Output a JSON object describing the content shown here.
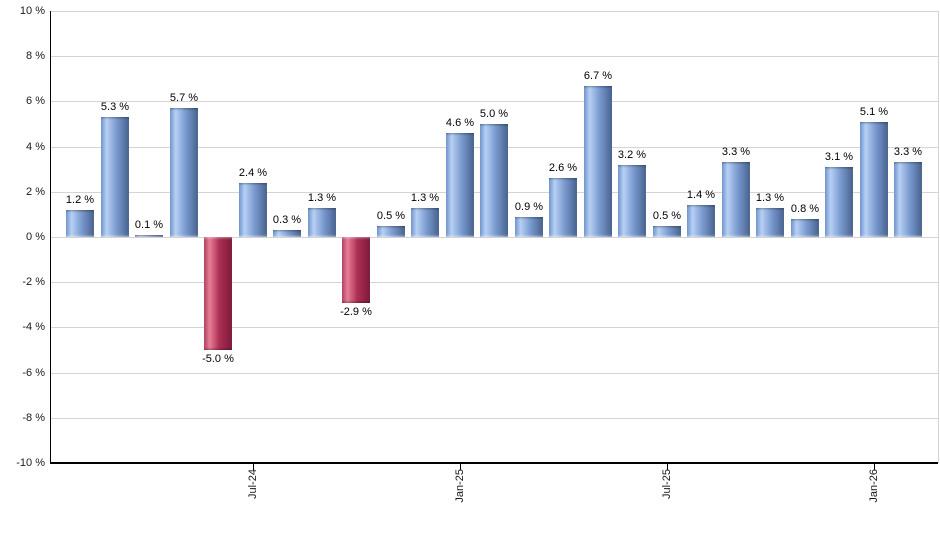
{
  "chart_data": {
    "type": "bar",
    "title": "",
    "xlabel": "",
    "ylabel": "",
    "values": [
      1.2,
      5.3,
      0.1,
      5.7,
      -5.0,
      2.4,
      0.3,
      1.3,
      -2.9,
      0.5,
      1.3,
      4.6,
      5.0,
      0.9,
      2.6,
      6.7,
      3.2,
      0.5,
      1.4,
      3.3,
      1.3,
      0.8,
      3.1,
      5.1,
      3.3
    ],
    "bar_labels": [
      "1.2 %",
      "5.3 %",
      "0.1 %",
      "5.7 %",
      "-5.0 %",
      "2.4 %",
      "0.3 %",
      "1.3 %",
      "-2.9 %",
      "0.5 %",
      "1.3 %",
      "4.6 %",
      "5.0 %",
      "0.9 %",
      "2.6 %",
      "6.7 %",
      "3.2 %",
      "0.5 %",
      "1.4 %",
      "3.3 %",
      "1.3 %",
      "0.8 %",
      "3.1 %",
      "5.1 %",
      "3.3 %"
    ],
    "x_ticks": [
      {
        "label": "Jul-24",
        "bar_index": 5
      },
      {
        "label": "Jan-25",
        "bar_index": 11
      },
      {
        "label": "Jul-25",
        "bar_index": 17
      },
      {
        "label": "Jan-26",
        "bar_index": 23
      }
    ],
    "y_ticks": {
      "values": [
        10,
        8,
        6,
        4,
        2,
        0,
        -2,
        -4,
        -6,
        -8,
        -10
      ],
      "labels": [
        "10 %",
        "8 %",
        "6 %",
        "4 %",
        "2 %",
        "0 %",
        "-2 %",
        "-4 %",
        "-6 %",
        "-8 %",
        "-10 %"
      ]
    },
    "ylim": [
      -10,
      10
    ],
    "grid": "horizontal",
    "legend": "none",
    "colors": {
      "positive_gradient": [
        "#6e95cf",
        "#b7d0f3",
        "#7b9bd0",
        "#47628e"
      ],
      "negative_gradient": [
        "#b14061",
        "#e67e97",
        "#ad2e53",
        "#7c1a3b"
      ],
      "gradient_stops_pct": [
        0,
        20,
        55,
        100
      ],
      "grid_color": "#d4d4d4",
      "axis_color": "#000000",
      "label_color": "#1a1a1a",
      "background": "#ffffff"
    }
  }
}
